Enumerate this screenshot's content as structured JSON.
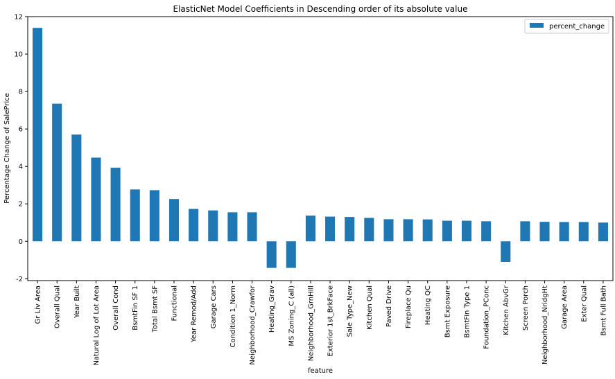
{
  "chart_data": {
    "type": "bar",
    "title": "ElasticNet Model Coefficients in Descending order of its absolute value",
    "xlabel": "feature",
    "ylabel": "Percentage Change of SalePrice",
    "ylim": [
      -2.1,
      12
    ],
    "yticks": [
      -2,
      0,
      2,
      4,
      6,
      8,
      10,
      12
    ],
    "grid": false,
    "legend_position": "top-right",
    "categories": [
      "Gr Liv Area",
      "Overall Qual",
      "Year Built",
      "Natural Log of Lot Area",
      "Overall Cond",
      "BsmtFin SF 1",
      "Total Bsmt SF",
      "Functional",
      "Year Remod/Add",
      "Garage Cars",
      "Condition 1_Norm",
      "Neighborhood_Crawfor",
      "Heating_Grav",
      "MS Zoning_C (all)",
      "Neighborhood_GrnHill",
      "Exterior 1st_BrkFace",
      "Sale Type_New",
      "Kitchen Qual",
      "Paved Drive",
      "Fireplace Qu",
      "Heating QC",
      "Bsmt Exposure",
      "BsmtFin Type 1",
      "Foundation_PConc",
      "Kitchen AbvGr",
      "Screen Porch",
      "Neighborhood_NridgHt",
      "Garage Area",
      "Exter Qual",
      "Bsmt Full Bath"
    ],
    "series": [
      {
        "name": "percent_change",
        "color": "#1f77b4",
        "values": [
          11.4,
          7.35,
          5.7,
          4.47,
          3.93,
          2.77,
          2.73,
          2.26,
          1.73,
          1.65,
          1.55,
          1.55,
          -1.42,
          -1.42,
          1.37,
          1.32,
          1.3,
          1.25,
          1.18,
          1.18,
          1.17,
          1.1,
          1.1,
          1.07,
          -1.1,
          1.07,
          1.04,
          1.03,
          1.03,
          1.0
        ]
      }
    ]
  }
}
